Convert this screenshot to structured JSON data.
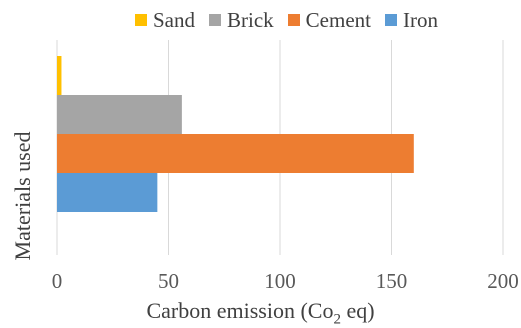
{
  "chart_data": {
    "type": "bar",
    "orientation": "horizontal",
    "series": [
      {
        "name": "Sand",
        "value": 2,
        "color": "#FFC000"
      },
      {
        "name": "Brick",
        "value": 56,
        "color": "#A5A5A5"
      },
      {
        "name": "Cement",
        "value": 160,
        "color": "#ED7D31"
      },
      {
        "name": "Iron",
        "value": 45,
        "color": "#5B9BD5"
      }
    ],
    "legend": [
      "Sand",
      "Brick",
      "Cement",
      "Iron"
    ],
    "legend_position": "top",
    "xlabel": "Carbon emission (Co",
    "xlabel_sub": "2",
    "xlabel_suffix": " eq)",
    "ylabel": "Materials used",
    "xlim": [
      0,
      200
    ],
    "xticks": [
      "0",
      "50",
      "100",
      "150",
      "200"
    ],
    "grid": "vertical"
  }
}
